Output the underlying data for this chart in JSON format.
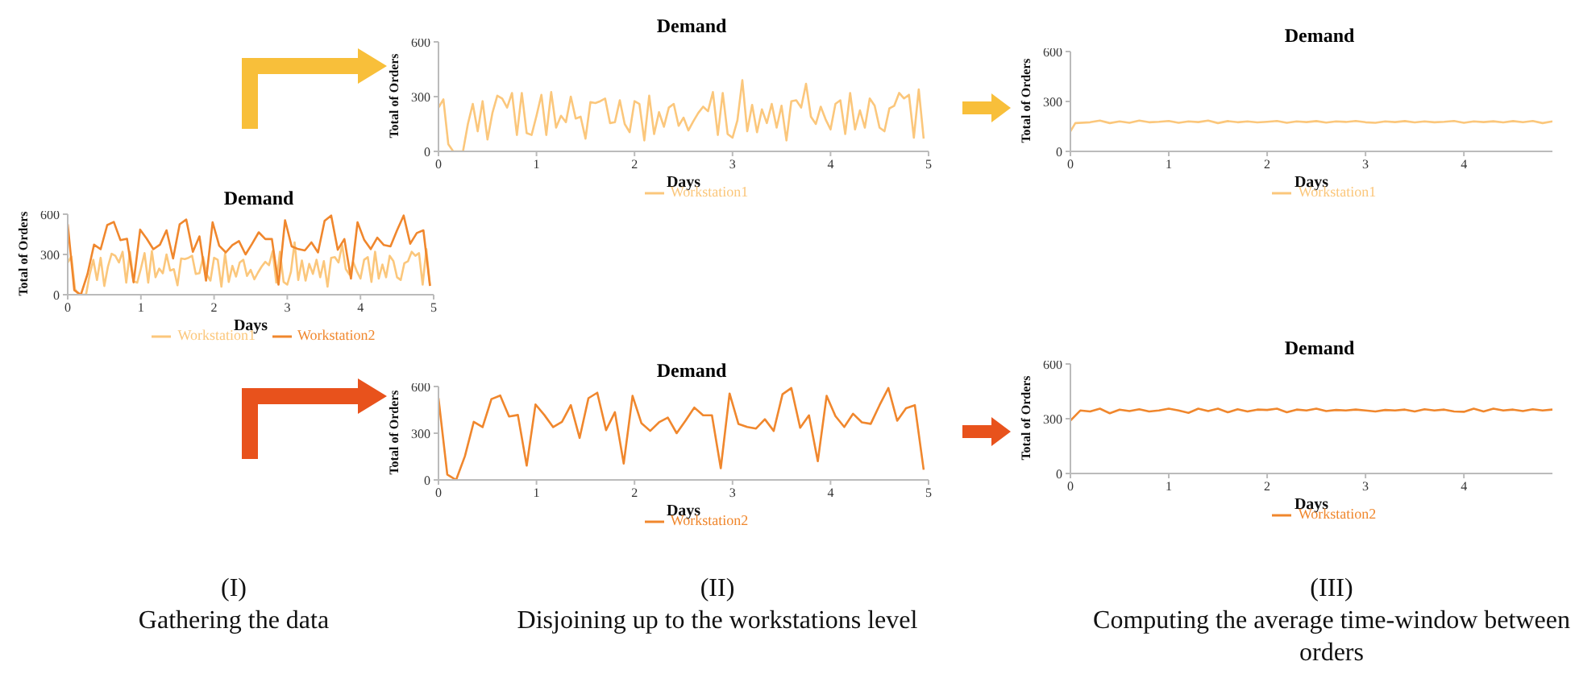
{
  "chart_data": [
    {
      "type": "line",
      "title": "Demand",
      "xlabel": "Days",
      "ylabel": "Total of Orders",
      "xlim": [
        0,
        5
      ],
      "xticks": [
        0,
        1,
        2,
        3,
        4,
        5
      ],
      "ylim": [
        0,
        600
      ],
      "yticks": [
        0,
        300,
        600
      ],
      "legend": "bottom",
      "annotations": [
        "(I)",
        "Gathering the data"
      ],
      "series": [
        {
          "name": "Workstation1",
          "color": "#fbc77c",
          "x": [
            0,
            0.05,
            0.1,
            0.15,
            0.2,
            0.25,
            0.3,
            0.35,
            0.4,
            0.45,
            0.5,
            0.55,
            0.6,
            0.65,
            0.7,
            0.75,
            0.8,
            0.85,
            0.9,
            0.95,
            1,
            1.05,
            1.1,
            1.15,
            1.2,
            1.25,
            1.3,
            1.35,
            1.4,
            1.45,
            1.5,
            1.55,
            1.6,
            1.65,
            1.7,
            1.75,
            1.8,
            1.85,
            1.9,
            1.95,
            2,
            2.05,
            2.1,
            2.15,
            2.2,
            2.25,
            2.3,
            2.35,
            2.4,
            2.45,
            2.5,
            2.55,
            2.6,
            2.65,
            2.7,
            2.75,
            2.8,
            2.85,
            2.9,
            2.95,
            3,
            3.05,
            3.1,
            3.15,
            3.2,
            3.25,
            3.3,
            3.35,
            3.4,
            3.45,
            3.5,
            3.55,
            3.6,
            3.65,
            3.7,
            3.75,
            3.8,
            3.85,
            3.9,
            3.95,
            4,
            4.05,
            4.1,
            4.15,
            4.2,
            4.25,
            4.3,
            4.35,
            4.4,
            4.45,
            4.5,
            4.55,
            4.6,
            4.65,
            4.7,
            4.75,
            4.8,
            4.85,
            4.9,
            4.95
          ],
          "values": [
            240,
            285,
            40,
            0,
            0,
            0,
            150,
            260,
            110,
            275,
            65,
            210,
            305,
            290,
            240,
            320,
            90,
            320,
            100,
            90,
            195,
            310,
            90,
            325,
            130,
            195,
            160,
            300,
            180,
            190,
            70,
            270,
            265,
            275,
            290,
            155,
            160,
            280,
            150,
            105,
            275,
            260,
            60,
            305,
            95,
            215,
            135,
            240,
            260,
            140,
            185,
            115,
            165,
            210,
            245,
            220,
            325,
            90,
            320,
            95,
            75,
            170,
            390,
            110,
            255,
            105,
            230,
            155,
            260,
            130,
            250,
            60,
            275,
            280,
            240,
            370,
            190,
            150,
            245,
            175,
            120,
            260,
            280,
            95,
            320,
            120,
            225,
            130,
            290,
            250,
            130,
            110,
            235,
            250,
            320,
            290,
            310,
            75,
            340,
            70
          ]
        },
        {
          "name": "Workstation2",
          "color": "#f0872d",
          "x": [
            0,
            0.09,
            0.18,
            0.27,
            0.36,
            0.45,
            0.54,
            0.63,
            0.72,
            0.81,
            0.9,
            0.99,
            1.08,
            1.17,
            1.26,
            1.35,
            1.44,
            1.53,
            1.62,
            1.71,
            1.8,
            1.89,
            1.98,
            2.07,
            2.16,
            2.25,
            2.34,
            2.43,
            2.52,
            2.61,
            2.7,
            2.79,
            2.88,
            2.97,
            3.06,
            3.15,
            3.24,
            3.33,
            3.42,
            3.51,
            3.6,
            3.69,
            3.78,
            3.87,
            3.96,
            4.05,
            4.14,
            4.23,
            4.32,
            4.41,
            4.5,
            4.59,
            4.68,
            4.77,
            4.86,
            4.95
          ],
          "values": [
            525,
            34,
            0,
            153,
            373,
            339,
            519,
            542,
            407,
            417,
            92,
            485,
            417,
            339,
            373,
            480,
            270,
            525,
            560,
            320,
            435,
            105,
            540,
            365,
            315,
            370,
            400,
            300,
            380,
            465,
            415,
            415,
            75,
            555,
            360,
            340,
            330,
            390,
            315,
            550,
            590,
            335,
            415,
            120,
            540,
            410,
            340,
            425,
            370,
            360,
            480,
            590,
            380,
            460,
            480,
            65
          ]
        }
      ]
    },
    {
      "type": "line",
      "title": "Demand",
      "xlabel": "Days",
      "ylabel": "Total of Orders",
      "xlim": [
        0,
        5
      ],
      "xticks": [
        0,
        1,
        2,
        3,
        4,
        5
      ],
      "ylim": [
        0,
        600
      ],
      "yticks": [
        0,
        300,
        600
      ],
      "legend": "bottom",
      "annotations": [
        "(II)",
        "Disjoining up to the workstations level"
      ],
      "series": [
        {
          "name": "Workstation1",
          "color": "#fbc77c",
          "x": [
            0,
            0.05,
            0.1,
            0.15,
            0.2,
            0.25,
            0.3,
            0.35,
            0.4,
            0.45,
            0.5,
            0.55,
            0.6,
            0.65,
            0.7,
            0.75,
            0.8,
            0.85,
            0.9,
            0.95,
            1,
            1.05,
            1.1,
            1.15,
            1.2,
            1.25,
            1.3,
            1.35,
            1.4,
            1.45,
            1.5,
            1.55,
            1.6,
            1.65,
            1.7,
            1.75,
            1.8,
            1.85,
            1.9,
            1.95,
            2,
            2.05,
            2.1,
            2.15,
            2.2,
            2.25,
            2.3,
            2.35,
            2.4,
            2.45,
            2.5,
            2.55,
            2.6,
            2.65,
            2.7,
            2.75,
            2.8,
            2.85,
            2.9,
            2.95,
            3,
            3.05,
            3.1,
            3.15,
            3.2,
            3.25,
            3.3,
            3.35,
            3.4,
            3.45,
            3.5,
            3.55,
            3.6,
            3.65,
            3.7,
            3.75,
            3.8,
            3.85,
            3.9,
            3.95,
            4,
            4.05,
            4.1,
            4.15,
            4.2,
            4.25,
            4.3,
            4.35,
            4.4,
            4.45,
            4.5,
            4.55,
            4.6,
            4.65,
            4.7,
            4.75,
            4.8,
            4.85,
            4.9,
            4.95
          ],
          "values": [
            240,
            285,
            40,
            0,
            0,
            0,
            150,
            260,
            110,
            275,
            65,
            210,
            305,
            290,
            240,
            320,
            90,
            320,
            100,
            90,
            195,
            310,
            90,
            325,
            130,
            195,
            160,
            300,
            180,
            190,
            70,
            270,
            265,
            275,
            290,
            155,
            160,
            280,
            150,
            105,
            275,
            260,
            60,
            305,
            95,
            215,
            135,
            240,
            260,
            140,
            185,
            115,
            165,
            210,
            245,
            220,
            325,
            90,
            320,
            95,
            75,
            170,
            390,
            110,
            255,
            105,
            230,
            155,
            260,
            130,
            250,
            60,
            275,
            280,
            240,
            370,
            190,
            150,
            245,
            175,
            120,
            260,
            280,
            95,
            320,
            120,
            225,
            130,
            290,
            250,
            130,
            110,
            235,
            250,
            320,
            290,
            310,
            75,
            340,
            70
          ]
        }
      ]
    },
    {
      "type": "line",
      "title": "Demand",
      "xlabel": "Days",
      "ylabel": "Total of Orders",
      "xlim": [
        0,
        5
      ],
      "xticks": [
        0,
        1,
        2,
        3,
        4,
        5
      ],
      "ylim": [
        0,
        600
      ],
      "yticks": [
        0,
        300,
        600
      ],
      "legend": "bottom",
      "series": [
        {
          "name": "Workstation2",
          "color": "#f0872d",
          "x": [
            0,
            0.09,
            0.18,
            0.27,
            0.36,
            0.45,
            0.54,
            0.63,
            0.72,
            0.81,
            0.9,
            0.99,
            1.08,
            1.17,
            1.26,
            1.35,
            1.44,
            1.53,
            1.62,
            1.71,
            1.8,
            1.89,
            1.98,
            2.07,
            2.16,
            2.25,
            2.34,
            2.43,
            2.52,
            2.61,
            2.7,
            2.79,
            2.88,
            2.97,
            3.06,
            3.15,
            3.24,
            3.33,
            3.42,
            3.51,
            3.6,
            3.69,
            3.78,
            3.87,
            3.96,
            4.05,
            4.14,
            4.23,
            4.32,
            4.41,
            4.5,
            4.59,
            4.68,
            4.77,
            4.86,
            4.95
          ],
          "values": [
            525,
            34,
            0,
            153,
            373,
            339,
            519,
            542,
            407,
            417,
            92,
            485,
            417,
            339,
            373,
            480,
            270,
            525,
            560,
            320,
            435,
            105,
            540,
            365,
            315,
            370,
            400,
            300,
            380,
            465,
            415,
            415,
            75,
            555,
            360,
            340,
            330,
            390,
            315,
            550,
            590,
            335,
            415,
            120,
            540,
            410,
            340,
            425,
            370,
            360,
            480,
            590,
            380,
            460,
            480,
            65
          ]
        }
      ]
    },
    {
      "type": "line",
      "title": "Demand",
      "xlabel": "Days",
      "ylabel": "Total of Orders",
      "xlim": [
        0,
        4.9
      ],
      "xticks": [
        0,
        1,
        2,
        3,
        4
      ],
      "ylim": [
        0,
        600
      ],
      "yticks": [
        0,
        300,
        600
      ],
      "legend": "bottom",
      "annotations": [
        "(III)",
        "Computing the average time-window between orders"
      ],
      "series": [
        {
          "name": "Workstation1",
          "color": "#fbc77c",
          "x": [
            0,
            0.05,
            0.2,
            0.3,
            0.4,
            0.5,
            0.6,
            0.7,
            0.8,
            0.9,
            1,
            1.1,
            1.2,
            1.3,
            1.4,
            1.5,
            1.6,
            1.7,
            1.8,
            1.9,
            2,
            2.1,
            2.2,
            2.3,
            2.4,
            2.5,
            2.6,
            2.7,
            2.8,
            2.9,
            3,
            3.1,
            3.2,
            3.3,
            3.4,
            3.5,
            3.6,
            3.7,
            3.8,
            3.9,
            4,
            4.1,
            4.2,
            4.3,
            4.4,
            4.5,
            4.6,
            4.7,
            4.8,
            4.9
          ],
          "values": [
            120,
            170,
            175,
            185,
            170,
            180,
            172,
            185,
            175,
            178,
            183,
            172,
            180,
            176,
            185,
            170,
            182,
            175,
            180,
            174,
            178,
            183,
            172,
            180,
            176,
            182,
            173,
            180,
            177,
            183,
            175,
            172,
            180,
            176,
            182,
            174,
            180,
            175,
            178,
            183,
            172,
            180,
            176,
            181,
            174,
            182,
            175,
            183,
            170,
            180
          ]
        }
      ]
    },
    {
      "type": "line",
      "title": "Demand",
      "xlabel": "Days",
      "ylabel": "Total of Orders",
      "xlim": [
        0,
        4.9
      ],
      "xticks": [
        0,
        1,
        2,
        3,
        4
      ],
      "ylim": [
        0,
        600
      ],
      "yticks": [
        0,
        300,
        600
      ],
      "legend": "bottom",
      "series": [
        {
          "name": "Workstation2",
          "color": "#f0872d",
          "x": [
            0,
            0.1,
            0.2,
            0.3,
            0.4,
            0.5,
            0.6,
            0.7,
            0.8,
            0.9,
            1,
            1.1,
            1.2,
            1.3,
            1.4,
            1.5,
            1.6,
            1.7,
            1.8,
            1.9,
            2,
            2.1,
            2.2,
            2.3,
            2.4,
            2.5,
            2.6,
            2.7,
            2.8,
            2.9,
            3,
            3.1,
            3.2,
            3.3,
            3.4,
            3.5,
            3.6,
            3.7,
            3.8,
            3.9,
            4,
            4.1,
            4.2,
            4.3,
            4.4,
            4.5,
            4.6,
            4.7,
            4.8,
            4.9
          ],
          "values": [
            290,
            345,
            340,
            355,
            330,
            350,
            342,
            352,
            340,
            345,
            355,
            345,
            332,
            355,
            342,
            355,
            335,
            352,
            340,
            350,
            348,
            355,
            335,
            350,
            345,
            355,
            342,
            348,
            345,
            350,
            345,
            340,
            348,
            345,
            350,
            340,
            352,
            345,
            350,
            340,
            338,
            355,
            340,
            355,
            345,
            350,
            342,
            352,
            345,
            350
          ]
        }
      ]
    }
  ]
}
